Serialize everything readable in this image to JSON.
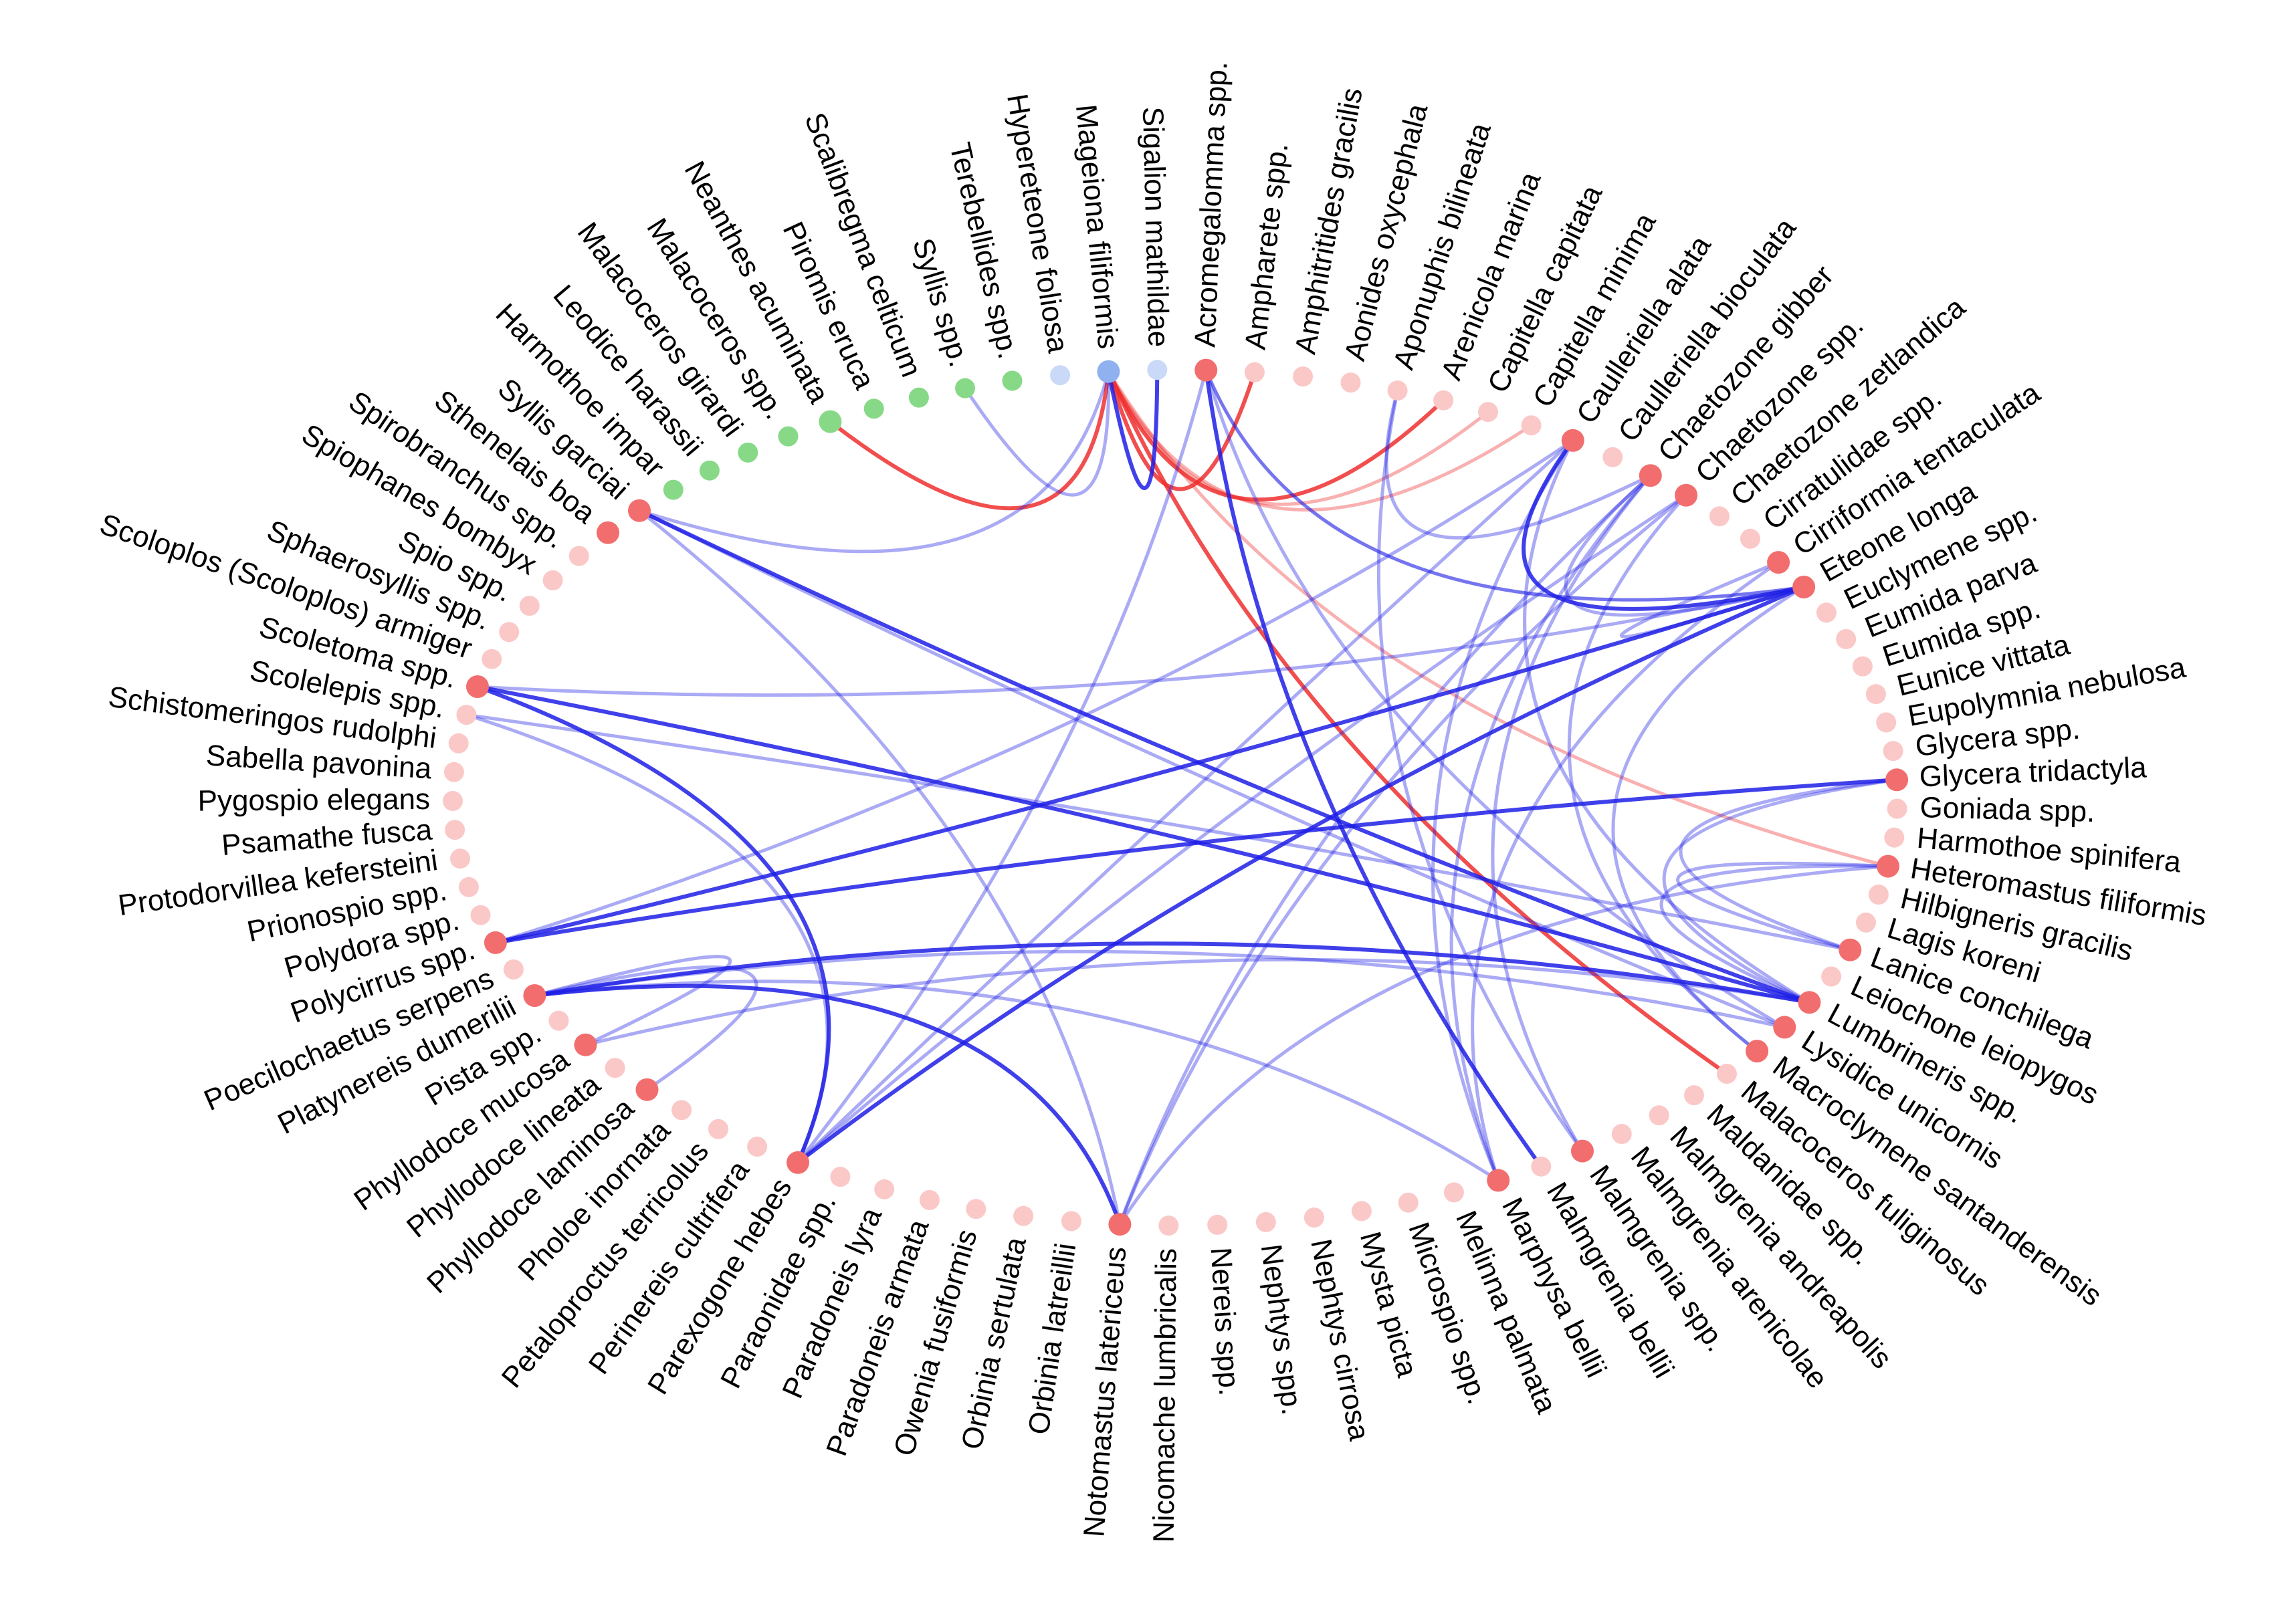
{
  "colors": {
    "red_node": "#f26d6d",
    "red_node_faint": "#fbc8c8",
    "green_node": "#87d987",
    "blue_node": "#8fb1ef",
    "blue_node_faint": "#c9d9f7",
    "blue_edge": "#1f1fe6",
    "red_edge": "#ee2f2f"
  },
  "nodes": [
    {
      "label": "Acromegalomma spp.",
      "group": "red",
      "hub": true
    },
    {
      "label": "Ampharete spp.",
      "group": "red"
    },
    {
      "label": "Amphitritides gracilis",
      "group": "red"
    },
    {
      "label": "Aonides oxycephala",
      "group": "red"
    },
    {
      "label": "Aponuphis bilineata",
      "group": "red"
    },
    {
      "label": "Arenicola marina",
      "group": "red"
    },
    {
      "label": "Capitella capitata",
      "group": "red"
    },
    {
      "label": "Capitella minima",
      "group": "red"
    },
    {
      "label": "Caulleriella alata",
      "group": "red",
      "hub": true
    },
    {
      "label": "Caulleriella bioculata",
      "group": "red"
    },
    {
      "label": "Chaetozone gibber",
      "group": "red",
      "hub": true
    },
    {
      "label": "Chaetozone spp.",
      "group": "red",
      "hub": true
    },
    {
      "label": "Chaetozone zetlandica",
      "group": "red"
    },
    {
      "label": "Cirratulidae spp.",
      "group": "red"
    },
    {
      "label": "Cirriformia tentaculata",
      "group": "red",
      "hub": true
    },
    {
      "label": "Eteone longa",
      "group": "red",
      "hub": true
    },
    {
      "label": "Euclymene spp.",
      "group": "red"
    },
    {
      "label": "Eumida parva",
      "group": "red"
    },
    {
      "label": "Eumida spp.",
      "group": "red"
    },
    {
      "label": "Eunice vittata",
      "group": "red"
    },
    {
      "label": "Eupolymnia nebulosa",
      "group": "red"
    },
    {
      "label": "Glycera spp.",
      "group": "red"
    },
    {
      "label": "Glycera tridactyla",
      "group": "red",
      "hub": true
    },
    {
      "label": "Goniada spp.",
      "group": "red"
    },
    {
      "label": "Harmothoe spinifera",
      "group": "red"
    },
    {
      "label": "Heteromastus filiformis",
      "group": "red",
      "hub": true
    },
    {
      "label": "Hilbigneris gracilis",
      "group": "red"
    },
    {
      "label": "Lagis koreni",
      "group": "red"
    },
    {
      "label": "Lanice conchilega",
      "group": "red",
      "hub": true
    },
    {
      "label": "Leiochone leiopygos",
      "group": "red"
    },
    {
      "label": "Lumbrineris spp.",
      "group": "red",
      "hub": true
    },
    {
      "label": "Lysidice unicornis",
      "group": "red",
      "hub": true
    },
    {
      "label": "Macroclymene santanderensis",
      "group": "red",
      "hub": true
    },
    {
      "label": "Malacoceros fuliginosus",
      "group": "red"
    },
    {
      "label": "Maldanidae spp.",
      "group": "red"
    },
    {
      "label": "Malmgrenia andreapolis",
      "group": "red"
    },
    {
      "label": "Malmgrenia arenicolae",
      "group": "red"
    },
    {
      "label": "Malmgrenia spp.",
      "group": "red",
      "hub": true
    },
    {
      "label": "Malmgrenia bellii",
      "group": "red"
    },
    {
      "label": "Marphysa bellii",
      "group": "red",
      "hub": true
    },
    {
      "label": "Melinna palmata",
      "group": "red"
    },
    {
      "label": "Microspio spp.",
      "group": "red"
    },
    {
      "label": "Mysta picta",
      "group": "red"
    },
    {
      "label": "Nephtys cirrosa",
      "group": "red"
    },
    {
      "label": "Nephtys spp.",
      "group": "red"
    },
    {
      "label": "Nereis spp.",
      "group": "red"
    },
    {
      "label": "Nicomache lumbricalis",
      "group": "red"
    },
    {
      "label": "Notomastus latericeus",
      "group": "red",
      "hub": true
    },
    {
      "label": "Orbinia latreillii",
      "group": "red"
    },
    {
      "label": "Orbinia sertulata",
      "group": "red"
    },
    {
      "label": "Owenia fusiformis",
      "group": "red"
    },
    {
      "label": "Paradoneis armata",
      "group": "red"
    },
    {
      "label": "Paradoneis lyra",
      "group": "red"
    },
    {
      "label": "Paraonidae spp.",
      "group": "red"
    },
    {
      "label": "Parexogone hebes",
      "group": "red",
      "hub": true
    },
    {
      "label": "Perinereis cultrifera",
      "group": "red"
    },
    {
      "label": "Petaloproctus terricolus",
      "group": "red"
    },
    {
      "label": "Pholoe inornata",
      "group": "red"
    },
    {
      "label": "Phyllodoce laminosa",
      "group": "red",
      "hub": true
    },
    {
      "label": "Phyllodoce lineata",
      "group": "red"
    },
    {
      "label": "Phyllodoce mucosa",
      "group": "red",
      "hub": true
    },
    {
      "label": "Pista spp.",
      "group": "red"
    },
    {
      "label": "Platynereis dumerilii",
      "group": "red",
      "hub": true
    },
    {
      "label": "Poecilochaetus serpens",
      "group": "red"
    },
    {
      "label": "Polycirrus spp.",
      "group": "red",
      "hub": true
    },
    {
      "label": "Polydora spp.",
      "group": "red"
    },
    {
      "label": "Prionospio spp.",
      "group": "red"
    },
    {
      "label": "Protodorvillea kefersteini",
      "group": "red"
    },
    {
      "label": "Psamathe fusca",
      "group": "red"
    },
    {
      "label": "Pygospio elegans",
      "group": "red"
    },
    {
      "label": "Sabella pavonina",
      "group": "red"
    },
    {
      "label": "Schistomeringos rudolphi",
      "group": "red"
    },
    {
      "label": "Scolelepis spp.",
      "group": "red"
    },
    {
      "label": "Scoletoma spp.",
      "group": "red",
      "hub": true
    },
    {
      "label": "Scoloplos (Scoloplos) armiger",
      "group": "red"
    },
    {
      "label": "Sphaerosyllis spp.",
      "group": "red"
    },
    {
      "label": "Spio spp.",
      "group": "red"
    },
    {
      "label": "Spiophanes bombyx",
      "group": "red"
    },
    {
      "label": "Spirobranchus spp.",
      "group": "red"
    },
    {
      "label": "Sthenelais boa",
      "group": "red",
      "hub": true
    },
    {
      "label": "Syllis garciai",
      "group": "red",
      "hub": true
    },
    {
      "label": "Harmothoe impar",
      "group": "green"
    },
    {
      "label": "Leodice harassii",
      "group": "green"
    },
    {
      "label": "Malacoceros girardi",
      "group": "green"
    },
    {
      "label": "Malacoceros spp.",
      "group": "green"
    },
    {
      "label": "Neanthes acuminata",
      "group": "green",
      "hub": true
    },
    {
      "label": "Piromis eruca",
      "group": "green"
    },
    {
      "label": "Scalibregma celticum",
      "group": "green"
    },
    {
      "label": "Syllis spp.",
      "group": "green"
    },
    {
      "label": "Terebellides spp.",
      "group": "green"
    },
    {
      "label": "Hypereteone foliosa",
      "group": "blue"
    },
    {
      "label": "Mageiona filiformis",
      "group": "blue",
      "hub": true
    },
    {
      "label": "Sigalion mathildae",
      "group": "blue"
    }
  ],
  "edges": [
    {
      "from": 91,
      "to": 85,
      "color": "red",
      "strength": "strong"
    },
    {
      "from": 91,
      "to": 1,
      "color": "red",
      "strength": "strong"
    },
    {
      "from": 91,
      "to": 5,
      "color": "red",
      "strength": "strong"
    },
    {
      "from": 91,
      "to": 6,
      "color": "red",
      "strength": "weak"
    },
    {
      "from": 91,
      "to": 7,
      "color": "red",
      "strength": "weak"
    },
    {
      "from": 91,
      "to": 25,
      "color": "red",
      "strength": "weak"
    },
    {
      "from": 91,
      "to": 33,
      "color": "red",
      "strength": "strong"
    },
    {
      "from": 91,
      "to": 92,
      "color": "blue",
      "strength": "strong"
    },
    {
      "from": 91,
      "to": 88,
      "color": "blue",
      "strength": "weak"
    },
    {
      "from": 91,
      "to": 80,
      "color": "blue",
      "strength": "weak"
    },
    {
      "from": 0,
      "to": 38,
      "color": "blue",
      "strength": "strong"
    },
    {
      "from": 0,
      "to": 15,
      "color": "blue",
      "strength": "weak"
    },
    {
      "from": 80,
      "to": 30,
      "color": "blue",
      "strength": "strong"
    },
    {
      "from": 80,
      "to": 31,
      "color": "blue",
      "strength": "weak"
    },
    {
      "from": 80,
      "to": 47,
      "color": "blue",
      "strength": "weak"
    },
    {
      "from": 73,
      "to": 15,
      "color": "blue",
      "strength": "weak"
    },
    {
      "from": 73,
      "to": 30,
      "color": "blue",
      "strength": "strong"
    },
    {
      "from": 73,
      "to": 54,
      "color": "blue",
      "strength": "strong"
    },
    {
      "from": 72,
      "to": 28,
      "color": "blue",
      "strength": "weak"
    },
    {
      "from": 72,
      "to": 54,
      "color": "blue",
      "strength": "weak"
    },
    {
      "from": 64,
      "to": 15,
      "color": "blue",
      "strength": "strong"
    },
    {
      "from": 64,
      "to": 22,
      "color": "blue",
      "strength": "strong"
    },
    {
      "from": 64,
      "to": 8,
      "color": "blue",
      "strength": "weak"
    },
    {
      "from": 62,
      "to": 47,
      "color": "blue",
      "strength": "strong"
    },
    {
      "from": 62,
      "to": 30,
      "color": "blue",
      "strength": "strong"
    },
    {
      "from": 62,
      "to": 60,
      "color": "blue",
      "strength": "weak"
    },
    {
      "from": 62,
      "to": 58,
      "color": "blue",
      "strength": "weak"
    },
    {
      "from": 62,
      "to": 39,
      "color": "blue",
      "strength": "weak"
    },
    {
      "from": 62,
      "to": 31,
      "color": "blue",
      "strength": "weak"
    },
    {
      "from": 54,
      "to": 15,
      "color": "blue",
      "strength": "strong"
    },
    {
      "from": 54,
      "to": 11,
      "color": "blue",
      "strength": "weak"
    },
    {
      "from": 54,
      "to": 8,
      "color": "blue",
      "strength": "weak"
    },
    {
      "from": 54,
      "to": 0,
      "color": "blue",
      "strength": "weak"
    },
    {
      "from": 60,
      "to": 30,
      "color": "blue",
      "strength": "weak"
    },
    {
      "from": 47,
      "to": 11,
      "color": "blue",
      "strength": "weak"
    },
    {
      "from": 47,
      "to": 25,
      "color": "blue",
      "strength": "weak"
    },
    {
      "from": 39,
      "to": 8,
      "color": "blue",
      "strength": "weak"
    },
    {
      "from": 39,
      "to": 10,
      "color": "blue",
      "strength": "weak"
    },
    {
      "from": 39,
      "to": 14,
      "color": "blue",
      "strength": "weak"
    },
    {
      "from": 37,
      "to": 4,
      "color": "blue",
      "strength": "weak"
    },
    {
      "from": 37,
      "to": 10,
      "color": "blue",
      "strength": "weak"
    },
    {
      "from": 22,
      "to": 30,
      "color": "blue",
      "strength": "weak"
    },
    {
      "from": 22,
      "to": 28,
      "color": "blue",
      "strength": "weak"
    },
    {
      "from": 15,
      "to": 8,
      "color": "blue",
      "strength": "strong"
    },
    {
      "from": 15,
      "to": 14,
      "color": "blue",
      "strength": "weak"
    },
    {
      "from": 15,
      "to": 10,
      "color": "blue",
      "strength": "weak"
    },
    {
      "from": 15,
      "to": 0,
      "color": "blue",
      "strength": "weak"
    },
    {
      "from": 15,
      "to": 32,
      "color": "blue",
      "strength": "weak"
    },
    {
      "from": 25,
      "to": 30,
      "color": "blue",
      "strength": "weak"
    },
    {
      "from": 25,
      "to": 28,
      "color": "blue",
      "strength": "weak"
    },
    {
      "from": 30,
      "to": 8,
      "color": "blue",
      "strength": "weak"
    },
    {
      "from": 31,
      "to": 0,
      "color": "blue",
      "strength": "weak"
    },
    {
      "from": 10,
      "to": 4,
      "color": "blue",
      "strength": "weak"
    },
    {
      "from": 32,
      "to": 11,
      "color": "blue",
      "strength": "weak"
    },
    {
      "from": 47,
      "to": 10,
      "color": "blue",
      "strength": "weak"
    }
  ]
}
